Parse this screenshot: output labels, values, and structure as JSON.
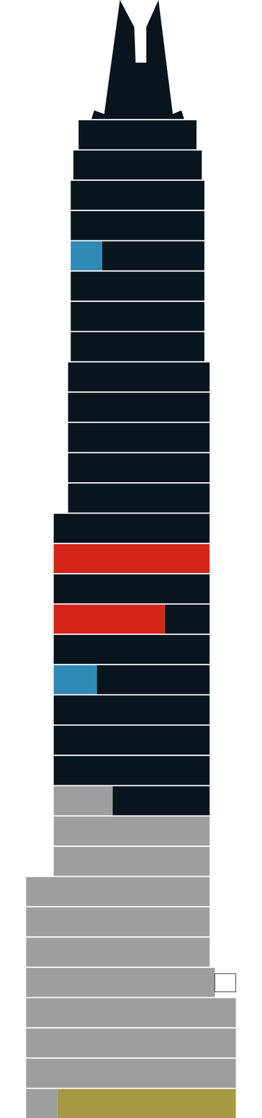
{
  "chart_data": {
    "type": "bar",
    "orientation": "horizontal",
    "stacked": true,
    "tick_labels": false,
    "xlim": [
      0,
      100
    ],
    "floors": [
      {
        "segments": [
          {
            "start": 10,
            "end": 22,
            "color": "#9e9e9e"
          },
          {
            "start": 22,
            "end": 90,
            "color": "#a89a45"
          }
        ]
      },
      {
        "segments": [
          {
            "start": 10,
            "end": 90,
            "color": "#9e9e9e"
          }
        ]
      },
      {
        "segments": [
          {
            "start": 10,
            "end": 90,
            "color": "#9e9e9e"
          }
        ]
      },
      {
        "segments": [
          {
            "start": 10,
            "end": 90,
            "color": "#9e9e9e"
          }
        ]
      },
      {
        "segments": [
          {
            "start": 10,
            "end": 82,
            "color": "#9e9e9e"
          },
          {
            "start": 82,
            "end": 90,
            "color": "#ffffff"
          }
        ]
      },
      {
        "segments": [
          {
            "start": 10,
            "end": 80,
            "color": "#9e9e9e"
          }
        ]
      },
      {
        "segments": [
          {
            "start": 10,
            "end": 80,
            "color": "#9e9e9e"
          }
        ]
      },
      {
        "segments": [
          {
            "start": 10,
            "end": 80,
            "color": "#9e9e9e"
          }
        ]
      },
      {
        "segments": [
          {
            "start": 20.5,
            "end": 80,
            "color": "#9e9e9e"
          }
        ]
      },
      {
        "segments": [
          {
            "start": 20.5,
            "end": 80,
            "color": "#9e9e9e"
          }
        ]
      },
      {
        "segments": [
          {
            "start": 20.5,
            "end": 43,
            "color": "#9e9e9e"
          },
          {
            "start": 43,
            "end": 80,
            "color": "#08151f"
          }
        ]
      },
      {
        "segments": [
          {
            "start": 20.5,
            "end": 80,
            "color": "#08151f"
          }
        ]
      },
      {
        "segments": [
          {
            "start": 20.5,
            "end": 80,
            "color": "#08151f"
          }
        ]
      },
      {
        "segments": [
          {
            "start": 20.5,
            "end": 80,
            "color": "#08151f"
          }
        ]
      },
      {
        "segments": [
          {
            "start": 20.5,
            "end": 37,
            "color": "#2e8ab5"
          },
          {
            "start": 37,
            "end": 80,
            "color": "#08151f"
          }
        ]
      },
      {
        "segments": [
          {
            "start": 20.5,
            "end": 80,
            "color": "#08151f"
          }
        ]
      },
      {
        "segments": [
          {
            "start": 20.5,
            "end": 63,
            "color": "#d42518"
          },
          {
            "start": 63,
            "end": 80,
            "color": "#08151f"
          }
        ]
      },
      {
        "segments": [
          {
            "start": 20.5,
            "end": 80,
            "color": "#08151f"
          }
        ]
      },
      {
        "segments": [
          {
            "start": 20.5,
            "end": 80,
            "color": "#d42518"
          }
        ]
      },
      {
        "segments": [
          {
            "start": 20.5,
            "end": 80,
            "color": "#08151f"
          }
        ]
      },
      {
        "segments": [
          {
            "start": 26,
            "end": 80,
            "color": "#08151f"
          }
        ]
      },
      {
        "segments": [
          {
            "start": 26,
            "end": 80,
            "color": "#08151f"
          }
        ]
      },
      {
        "segments": [
          {
            "start": 26,
            "end": 80,
            "color": "#08151f"
          }
        ]
      },
      {
        "segments": [
          {
            "start": 26,
            "end": 80,
            "color": "#08151f"
          }
        ]
      },
      {
        "segments": [
          {
            "start": 26,
            "end": 80,
            "color": "#08151f"
          }
        ]
      },
      {
        "segments": [
          {
            "start": 27,
            "end": 78,
            "color": "#08151f"
          }
        ]
      },
      {
        "segments": [
          {
            "start": 27,
            "end": 78,
            "color": "#08151f"
          }
        ]
      },
      {
        "segments": [
          {
            "start": 27,
            "end": 78,
            "color": "#08151f"
          }
        ]
      },
      {
        "segments": [
          {
            "start": 27,
            "end": 39,
            "color": "#2e8ab5"
          },
          {
            "start": 39,
            "end": 78,
            "color": "#08151f"
          }
        ]
      },
      {
        "segments": [
          {
            "start": 27,
            "end": 78,
            "color": "#08151f"
          }
        ]
      },
      {
        "segments": [
          {
            "start": 27,
            "end": 78,
            "color": "#08151f"
          }
        ]
      },
      {
        "segments": [
          {
            "start": 28,
            "end": 77,
            "color": "#08151f"
          }
        ]
      },
      {
        "segments": [
          {
            "start": 30,
            "end": 75,
            "color": "#08151f"
          }
        ]
      }
    ]
  }
}
